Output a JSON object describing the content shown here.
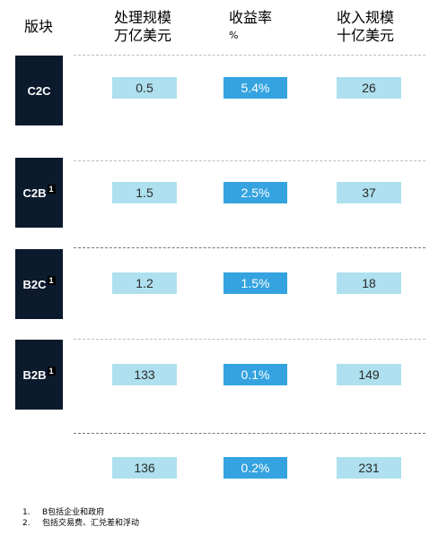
{
  "headers": {
    "segment": "版块",
    "volume": {
      "title": "处理规模",
      "unit": "万亿美元"
    },
    "yield": {
      "title": "收益率",
      "unit": "%"
    },
    "revenue": {
      "title": "收入规模",
      "unit": "十亿美元"
    }
  },
  "rows": [
    {
      "segment": "C2C",
      "note": "",
      "volume": "0.5",
      "yield": "5.4%",
      "revenue": "26"
    },
    {
      "segment": "C2B",
      "note": "1",
      "volume": "1.5",
      "yield": "2.5%",
      "revenue": "37"
    },
    {
      "segment": "B2C",
      "note": "1",
      "volume": "1.2",
      "yield": "1.5%",
      "revenue": "18"
    },
    {
      "segment": "B2B",
      "note": "1",
      "volume": "133",
      "yield": "0.1%",
      "revenue": "149"
    },
    {
      "segment": "",
      "note": "",
      "volume": "136",
      "yield": "0.2%",
      "revenue": "231"
    }
  ],
  "footnotes": [
    {
      "num": "1.",
      "text": "B包括企业和政府"
    },
    {
      "num": "2.",
      "text": "包括交易费、汇兑差和浮动"
    }
  ],
  "colors": {
    "segment_bg": "#0c1a2e",
    "light_cell": "#aee0ef",
    "yield_cell": "#34a3e0"
  }
}
